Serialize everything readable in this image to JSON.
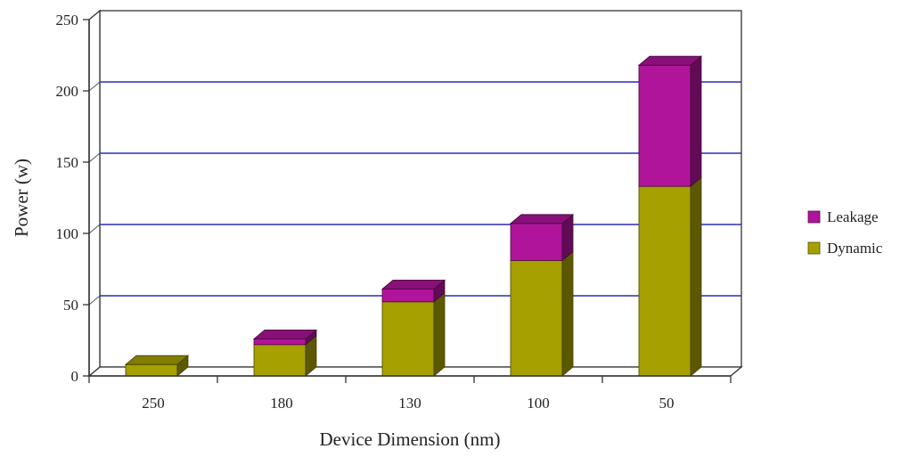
{
  "chart_data": {
    "type": "bar",
    "stacked": true,
    "title": "",
    "xlabel": "Device Dimension (nm)",
    "ylabel": "Power (w)",
    "categories": [
      "250",
      "180",
      "130",
      "100",
      "50"
    ],
    "series": [
      {
        "name": "Dynamic",
        "values": [
          8,
          22,
          52,
          81,
          133
        ],
        "color": "#a6a000"
      },
      {
        "name": "Leakage",
        "values": [
          0,
          4,
          9,
          26,
          85
        ],
        "color": "#b0149a"
      }
    ],
    "ylim": [
      0,
      250
    ],
    "yticks": [
      0,
      50,
      100,
      150,
      200,
      250
    ],
    "grid": true,
    "grid_color": "#2b2bb5",
    "legend": {
      "position": "right",
      "order": [
        "Leakage",
        "Dynamic"
      ]
    }
  }
}
